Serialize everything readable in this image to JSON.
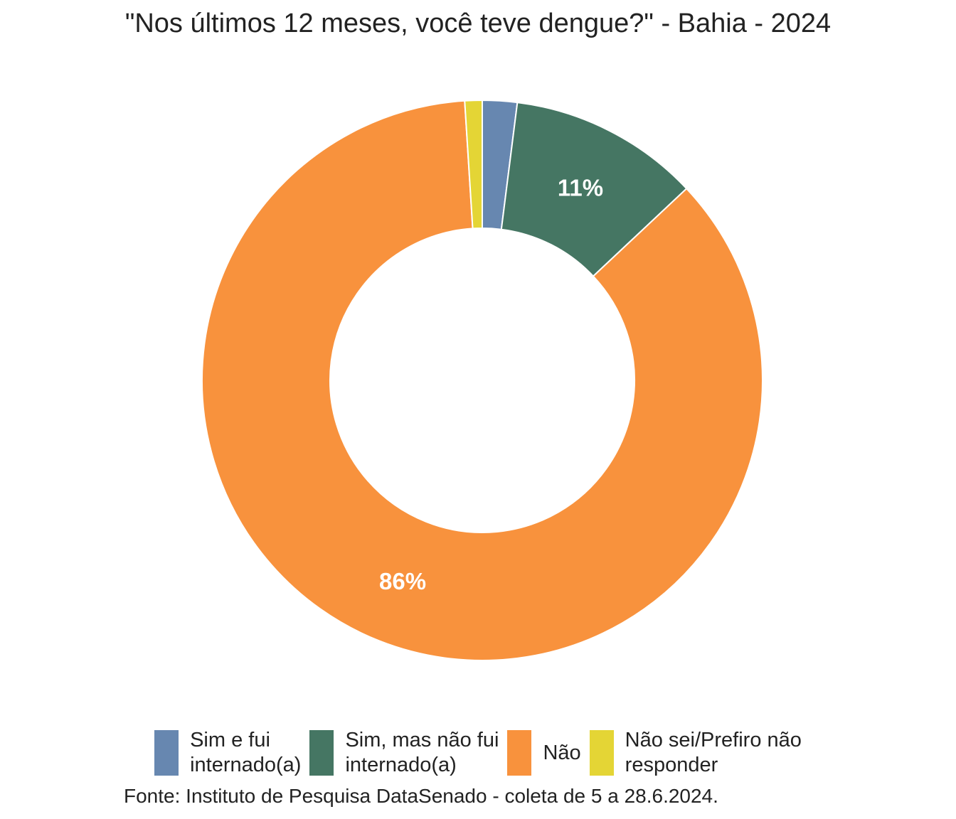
{
  "chart_data": {
    "type": "pie",
    "title": "\"Nos últimos 12 meses, você teve dengue?\" - Bahia - 2024",
    "caption": "Fonte: Instituto de Pesquisa DataSenado - coleta de 5 a 28.6.2024.",
    "donut": true,
    "legend_position": "bottom",
    "categories": [
      "Sim e fui\ninternado(a)",
      "Sim, mas não fui\ninternado(a)",
      "Não",
      "Não sei/Prefiro não\nresponder"
    ],
    "values": [
      2,
      11,
      86,
      1
    ],
    "data_labels": [
      "",
      "11%",
      "86%",
      ""
    ],
    "colors": [
      "#6787B0",
      "#457663",
      "#F8923D",
      "#E4D535"
    ]
  }
}
